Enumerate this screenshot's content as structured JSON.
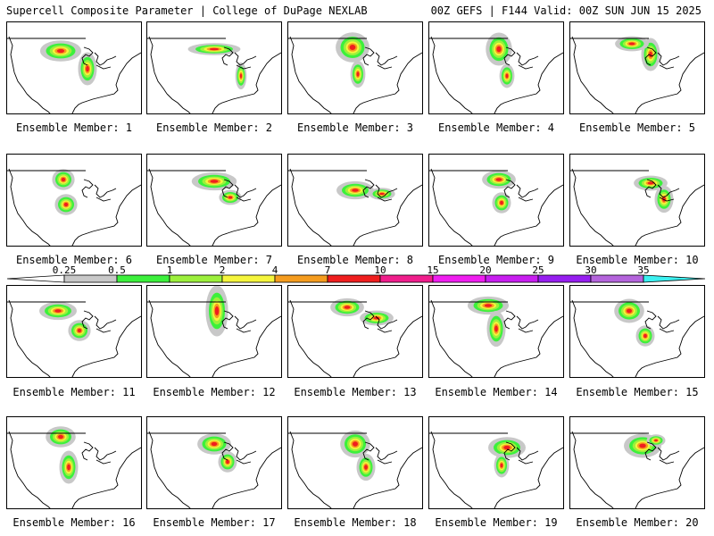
{
  "header": {
    "left": "Supercell Composite Parameter | College of DuPage NEXLAB",
    "right": "00Z GEFS | F144 Valid: 00Z SUN JUN 15 2025"
  },
  "panel_label_prefix": "Ensemble Member:",
  "members": [
    {
      "id": "1",
      "label": "Ensemble Member: 1"
    },
    {
      "id": "2",
      "label": "Ensemble Member: 2"
    },
    {
      "id": "3",
      "label": "Ensemble Member: 3"
    },
    {
      "id": "4",
      "label": "Ensemble Member: 4"
    },
    {
      "id": "5",
      "label": "Ensemble Member: 5"
    },
    {
      "id": "6",
      "label": "Ensemble Member: 6"
    },
    {
      "id": "7",
      "label": "Ensemble Member: 7"
    },
    {
      "id": "8",
      "label": "Ensemble Member: 8"
    },
    {
      "id": "9",
      "label": "Ensemble Member: 9"
    },
    {
      "id": "10",
      "label": "Ensemble Member: 10"
    },
    {
      "id": "11",
      "label": "Ensemble Member: 11"
    },
    {
      "id": "12",
      "label": "Ensemble Member: 12"
    },
    {
      "id": "13",
      "label": "Ensemble Member: 13"
    },
    {
      "id": "14",
      "label": "Ensemble Member: 14"
    },
    {
      "id": "15",
      "label": "Ensemble Member: 15"
    },
    {
      "id": "16",
      "label": "Ensemble Member: 16"
    },
    {
      "id": "17",
      "label": "Ensemble Member: 17"
    },
    {
      "id": "18",
      "label": "Ensemble Member: 18"
    },
    {
      "id": "19",
      "label": "Ensemble Member: 19"
    },
    {
      "id": "20",
      "label": "Ensemble Member: 20"
    }
  ],
  "colorbar": {
    "ticks": [
      "0.25",
      "0.5",
      "1",
      "2",
      "4",
      "7",
      "10",
      "15",
      "20",
      "25",
      "30",
      "35"
    ],
    "colors": [
      "#ffffff",
      "#c8c8c8",
      "#3cf03c",
      "#9cf03c",
      "#f5f53c",
      "#f59c1e",
      "#f01e1e",
      "#f01e8c",
      "#f01ef0",
      "#c81ef0",
      "#961ef0",
      "#b464dc",
      "#3cf0f0"
    ]
  }
}
